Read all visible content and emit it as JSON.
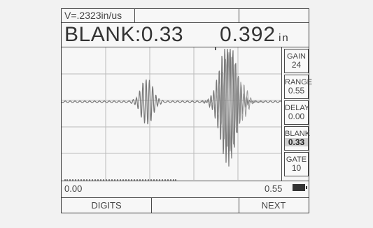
{
  "header": {
    "velocity": "V=.2323in/us",
    "blank_reading": "BLANK:0.33",
    "thickness_value": "0.392",
    "thickness_unit": "in"
  },
  "menu": {
    "items": [
      {
        "label": "GAIN",
        "value": "24"
      },
      {
        "label": "RANGE",
        "value": "0.55"
      },
      {
        "label": "DELAY",
        "value": "0.00"
      },
      {
        "label": "BLANK",
        "value": "0.33",
        "active": true
      },
      {
        "label": "GATE",
        "value": "10"
      }
    ]
  },
  "footer": {
    "range_start": "0.00",
    "range_end": "0.55",
    "battery_icon": "battery-icon"
  },
  "softkeys": {
    "left": "DIGITS",
    "right": "NEXT"
  },
  "colors": {
    "trace": "#777777",
    "grid": "#bbbbbb",
    "frame": "#3a3a3a"
  }
}
